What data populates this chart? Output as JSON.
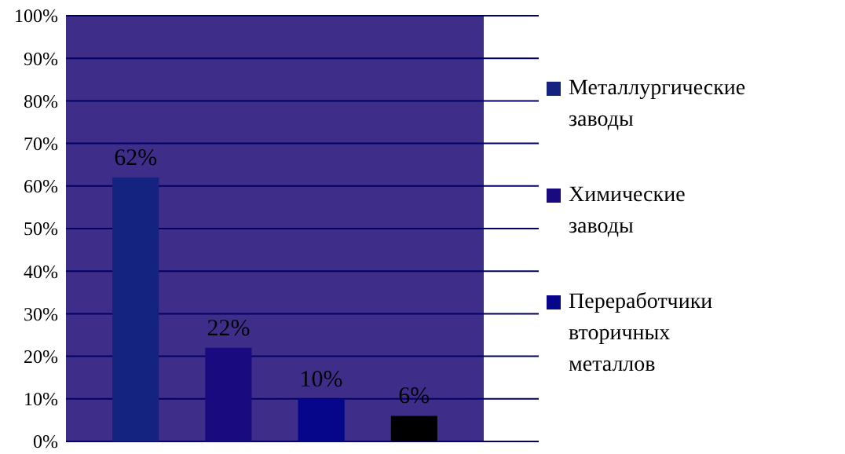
{
  "chart_data": {
    "type": "bar",
    "categories": [
      null,
      null,
      null,
      null
    ],
    "series": [
      {
        "name": "Металлургические заводы",
        "color": "#13237f",
        "values": [
          62,
          null,
          null,
          null
        ],
        "value_labels": [
          "62%",
          null,
          null,
          null
        ]
      },
      {
        "name": "Химические заводы",
        "color": "#1a0a80",
        "values": [
          null,
          22,
          null,
          null
        ],
        "value_labels": [
          null,
          "22%",
          null,
          null
        ]
      },
      {
        "name": "Переработчики вторичных металлов",
        "color": "#06068a",
        "values": [
          null,
          null,
          10,
          null
        ],
        "value_labels": [
          null,
          null,
          "10%",
          null
        ]
      },
      {
        "color": "#000000",
        "values": [
          null,
          null,
          null,
          6
        ],
        "value_labels": [
          null,
          null,
          null,
          "6%"
        ]
      }
    ],
    "ylim": [
      0,
      100
    ],
    "yticks": [
      {
        "value": 0,
        "label": "0%"
      },
      {
        "value": 10,
        "label": "10%"
      },
      {
        "value": 20,
        "label": "20%"
      },
      {
        "value": 30,
        "label": "30%"
      },
      {
        "value": 40,
        "label": "40%"
      },
      {
        "value": 50,
        "label": "50%"
      },
      {
        "value": 60,
        "label": "60%"
      },
      {
        "value": 70,
        "label": "70%"
      },
      {
        "value": 80,
        "label": "80%"
      },
      {
        "value": 90,
        "label": "90%"
      },
      {
        "value": 100,
        "label": "100%"
      }
    ],
    "grid": "y",
    "legend": "right",
    "stacked": true,
    "tick_labels": "y"
  }
}
